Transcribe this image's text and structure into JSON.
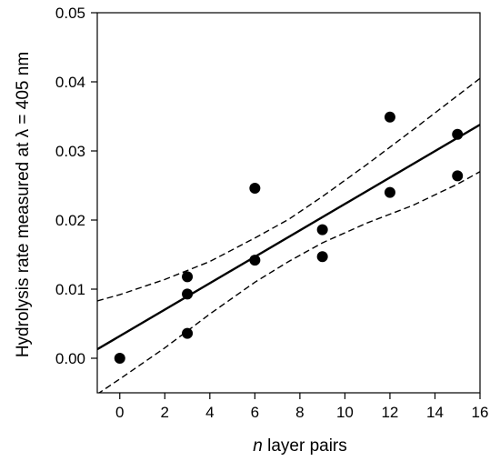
{
  "chart_data": {
    "type": "scatter",
    "xlabel_italic": "n",
    "xlabel_rest": " layer pairs",
    "ylabel": "Hydrolysis rate measured at λ = 405 nm",
    "xlim": [
      -1,
      16
    ],
    "ylim": [
      -0.005,
      0.05
    ],
    "xticks": [
      0,
      2,
      4,
      6,
      8,
      10,
      12,
      14,
      16
    ],
    "yticks": [
      0.0,
      0.01,
      0.02,
      0.03,
      0.04,
      0.05
    ],
    "ytick_decimals": 2,
    "grid": false,
    "points": [
      {
        "x": 0,
        "y": 0.0
      },
      {
        "x": 3,
        "y": 0.0036
      },
      {
        "x": 3,
        "y": 0.0093
      },
      {
        "x": 3,
        "y": 0.0118
      },
      {
        "x": 6,
        "y": 0.0142
      },
      {
        "x": 6,
        "y": 0.0246
      },
      {
        "x": 9,
        "y": 0.0147
      },
      {
        "x": 9,
        "y": 0.0186
      },
      {
        "x": 12,
        "y": 0.024
      },
      {
        "x": 12,
        "y": 0.0349
      },
      {
        "x": 15,
        "y": 0.0264
      },
      {
        "x": 15,
        "y": 0.0324
      }
    ],
    "fit_line": {
      "style": "solid",
      "x": [
        -1,
        16
      ],
      "y": [
        0.0013,
        0.0338
      ]
    },
    "confidence_bands": [
      {
        "style": "dashed",
        "x": [
          -1,
          0,
          2,
          4,
          6,
          7.5,
          9,
          11,
          13,
          15,
          16
        ],
        "y": [
          0.0083,
          0.0092,
          0.0114,
          0.014,
          0.0174,
          0.0201,
          0.0234,
          0.0281,
          0.033,
          0.038,
          0.0405
        ]
      },
      {
        "style": "dashed",
        "x": [
          -1,
          0,
          2,
          4,
          6,
          7.5,
          9,
          11,
          13,
          15,
          16
        ],
        "y": [
          -0.0052,
          -0.003,
          0.0015,
          0.0064,
          0.011,
          0.014,
          0.0167,
          0.0196,
          0.0221,
          0.0252,
          0.027
        ]
      }
    ]
  }
}
